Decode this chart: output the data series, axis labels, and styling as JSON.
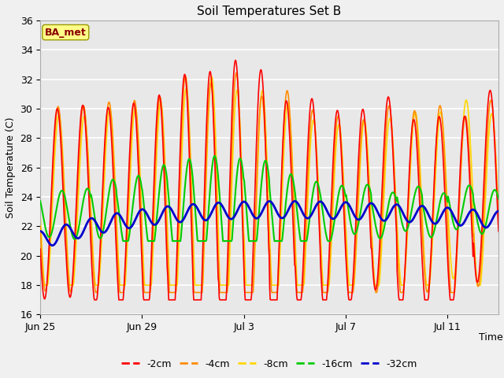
{
  "title": "Soil Temperatures Set B",
  "xlabel": "Time",
  "ylabel": "Soil Temperature (C)",
  "ylim": [
    16,
    36
  ],
  "annotation_text": "BA_met",
  "annotation_color": "#8B0000",
  "annotation_bg": "#FFFF88",
  "bg_color": "#E8E8E8",
  "plot_bg": "#E8E8E8",
  "line_colors": {
    "-2cm": "#FF0000",
    "-4cm": "#FF8C00",
    "-8cm": "#FFD700",
    "-16cm": "#00CC00",
    "-32cm": "#0000CC"
  },
  "line_widths": {
    "-2cm": 1.2,
    "-4cm": 1.2,
    "-8cm": 1.2,
    "-16cm": 1.5,
    "-32cm": 2.0
  },
  "x_ticks": [
    "Jun 25",
    "Jun 29",
    "Jul 3",
    "Jul 7",
    "Jul 11"
  ],
  "x_tick_positions": [
    0,
    4,
    8,
    12,
    16
  ],
  "total_days": 18,
  "samples_per_day": 48,
  "figwidth": 6.4,
  "figheight": 4.8,
  "dpi": 100
}
